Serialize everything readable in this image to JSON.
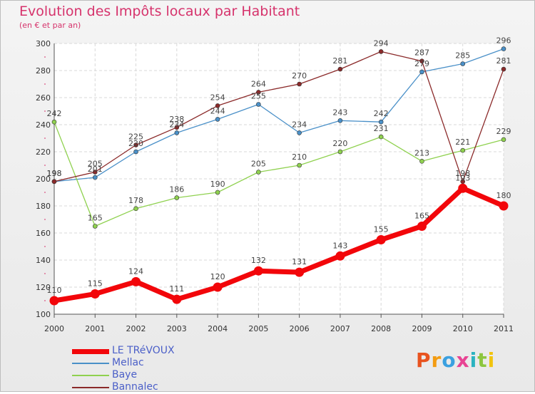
{
  "header": {
    "title": "Evolution des Impôts locaux par Habitant",
    "subtitle": "(en € et par an)"
  },
  "logo": {
    "text": "Proxiti",
    "colors": [
      "#e8531f",
      "#f39c12",
      "#3aa0e0",
      "#e84393",
      "#2bb3c0",
      "#8cc63f",
      "#f1c40f"
    ]
  },
  "chart_data": {
    "type": "line",
    "title": "Evolution des Impôts locaux par Habitant",
    "subtitle": "(en € et par an)",
    "xlabel": "",
    "ylabel": "",
    "x": [
      "2000",
      "2001",
      "2002",
      "2003",
      "2004",
      "2005",
      "2006",
      "2007",
      "2008",
      "2009",
      "2010",
      "2011"
    ],
    "ylim": [
      100,
      300
    ],
    "yticks": [
      "100",
      "120",
      "140",
      "160",
      "180",
      "200",
      "220",
      "240",
      "260",
      "280",
      "300"
    ],
    "grid": true,
    "legend_position": "bottom-left",
    "series": [
      {
        "name": "LE TRéVOUX",
        "color": "#f2060a",
        "emphasis": true,
        "values": [
          110,
          115,
          124,
          111,
          120,
          132,
          131,
          143,
          155,
          165,
          193,
          180
        ]
      },
      {
        "name": "Mellac",
        "color": "#4a90c8",
        "values": [
          198,
          201,
          220,
          234,
          244,
          255,
          234,
          243,
          242,
          279,
          285,
          296
        ]
      },
      {
        "name": "Baye",
        "color": "#8fd14f",
        "values": [
          242,
          165,
          178,
          186,
          190,
          205,
          210,
          220,
          231,
          213,
          221,
          229
        ]
      },
      {
        "name": "Bannalec",
        "color": "#8b2a2a",
        "values": [
          198,
          205,
          225,
          238,
          254,
          264,
          270,
          281,
          294,
          287,
          198,
          281
        ]
      }
    ]
  }
}
